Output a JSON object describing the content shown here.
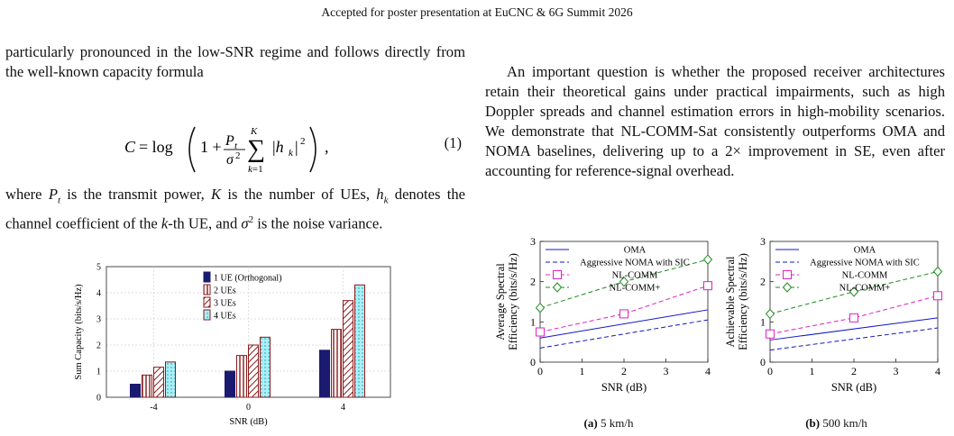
{
  "header": {
    "text": "Accepted for poster presentation at EuCNC & 6G Summit 2026"
  },
  "left": {
    "para1": "particularly pronounced in the low-SNR regime and follows directly from the well-known capacity formula",
    "equation_number": "(1)",
    "para2_a": "where ",
    "para2_b": " is the transmit power, ",
    "para2_c": " is the number of UEs, ",
    "para2_d": " denotes the channel coefficient of the ",
    "para2_e": "-th UE, and ",
    "para2_f": " is the noise variance."
  },
  "right": {
    "para1": "An important question is whether the proposed receiver architectures retain their theoretical gains under practical impairments, such as high Doppler spreads and channel estimation errors in high-mobility scenarios. We demonstrate that NL-COMM-Sat consistently outperforms OMA and NOMA baselines, delivering up to a 2× improvement in SE, even after accounting for reference-signal overhead."
  },
  "captions": {
    "a_label": "(a)",
    "a_text": " 5 km/h",
    "b_label": "(b)",
    "b_text": " 500 km/h"
  },
  "chart_data": [
    {
      "type": "bar",
      "ylabel": "Sum Capacity (bits/s/Hz)",
      "xlabel": "SNR (dB)",
      "categories": [
        "-4",
        "0",
        "4"
      ],
      "ylim": [
        0,
        5
      ],
      "yticks": [
        "0",
        "1",
        "2",
        "3",
        "4",
        "5"
      ],
      "grid": true,
      "legend_position": "top-left",
      "series": [
        {
          "name": "1 UE (Orthogonal)",
          "values": [
            0.5,
            1.0,
            1.8
          ],
          "color": "#1a1a6e",
          "pattern": "solid"
        },
        {
          "name": "2 UEs",
          "values": [
            0.85,
            1.6,
            2.6
          ],
          "color": "#8b1a1a",
          "pattern": "vertical"
        },
        {
          "name": "3 UEs",
          "values": [
            1.15,
            2.0,
            3.7
          ],
          "color": "#8b1a1a",
          "pattern": "diagonal"
        },
        {
          "name": "4 UEs",
          "values": [
            1.35,
            2.3,
            4.3
          ],
          "color": "#8b1a1a",
          "pattern": "cyan-dots"
        }
      ]
    },
    {
      "type": "line",
      "ylabel_line1": "Average Spectral",
      "ylabel_line2": "Efficiency (bits/s/Hz)",
      "xlabel": "SNR (dB)",
      "xlim": [
        0,
        4
      ],
      "ylim": [
        0,
        3
      ],
      "xticks": [
        "0",
        "1",
        "2",
        "3",
        "4"
      ],
      "yticks": [
        "0",
        "1",
        "2",
        "3"
      ],
      "legend_position": "top",
      "series": [
        {
          "name": "OMA",
          "x": [
            0,
            4
          ],
          "y": [
            0.6,
            1.3
          ],
          "color": "#1515c8",
          "style": "solid",
          "marker": "none"
        },
        {
          "name": "Aggressive NOMA with SIC",
          "x": [
            0,
            4
          ],
          "y": [
            0.35,
            1.05
          ],
          "color": "#1515c8",
          "style": "dashed",
          "marker": "none"
        },
        {
          "name": "NL-COMM",
          "x": [
            0,
            2,
            4
          ],
          "y": [
            0.75,
            1.2,
            1.9
          ],
          "color": "#e020c8",
          "style": "dashed",
          "marker": "square"
        },
        {
          "name": "NL-COMM+",
          "x": [
            0,
            2,
            4
          ],
          "y": [
            1.35,
            2.0,
            2.55
          ],
          "color": "#1f8a1f",
          "style": "dashed",
          "marker": "diamond"
        }
      ]
    },
    {
      "type": "line",
      "ylabel_line1": "Achievable Spectral",
      "ylabel_line2": "Efficiency (bits/s/Hz)",
      "xlabel": "SNR (dB)",
      "xlim": [
        0,
        4
      ],
      "ylim": [
        0,
        3
      ],
      "xticks": [
        "0",
        "1",
        "2",
        "3",
        "4"
      ],
      "yticks": [
        "0",
        "1",
        "2",
        "3"
      ],
      "legend_position": "top",
      "series": [
        {
          "name": "OMA",
          "x": [
            0,
            4
          ],
          "y": [
            0.55,
            1.1
          ],
          "color": "#1515c8",
          "style": "solid",
          "marker": "none"
        },
        {
          "name": "Aggressive NOMA with SIC",
          "x": [
            0,
            4
          ],
          "y": [
            0.3,
            0.85
          ],
          "color": "#1515c8",
          "style": "dashed",
          "marker": "none"
        },
        {
          "name": "NL-COMM",
          "x": [
            0,
            2,
            4
          ],
          "y": [
            0.7,
            1.1,
            1.65
          ],
          "color": "#e020c8",
          "style": "dashed",
          "marker": "square"
        },
        {
          "name": "NL-COMM+",
          "x": [
            0,
            2,
            4
          ],
          "y": [
            1.2,
            1.75,
            2.25
          ],
          "color": "#1f8a1f",
          "style": "dashed",
          "marker": "diamond"
        }
      ]
    }
  ]
}
